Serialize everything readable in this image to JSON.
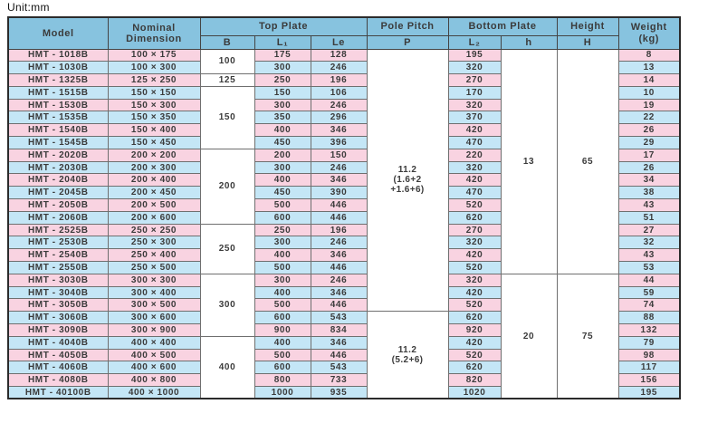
{
  "unit_label": "Unit:mm",
  "colors": {
    "header_blue": "#87c3df",
    "row_pink": "#f9d3e1",
    "row_blue": "#c4e6f6"
  },
  "table": {
    "headers": {
      "model": "Model",
      "nominal_dimension": "Nominal Dimension",
      "top_plate": "Top Plate",
      "pole_pitch": "Pole Pitch",
      "bottom_plate": "Bottom Plate",
      "height": "Height",
      "weight": "Weight",
      "weight_unit": "(kg)",
      "b": "B",
      "l1": "L₁",
      "le": "Le",
      "p": "P",
      "l2": "L₂",
      "h": "h",
      "H_col": "H"
    },
    "b_groups": [
      {
        "value": "100",
        "rows": 2
      },
      {
        "value": "125",
        "rows": 1
      },
      {
        "value": "150",
        "rows": 5
      },
      {
        "value": "200",
        "rows": 6
      },
      {
        "value": "250",
        "rows": 4
      },
      {
        "value": "300",
        "rows": 5
      },
      {
        "value": "400",
        "rows": 5
      }
    ],
    "p_groups": [
      {
        "lines": [
          "11.2",
          "(1.6+2",
          "+1.6+6)"
        ],
        "rows": 21
      },
      {
        "lines": [
          "11.2",
          "(5.2+6)"
        ],
        "rows": 7
      }
    ],
    "hH_groups": [
      {
        "h": "13",
        "H": "65",
        "rows": 18
      },
      {
        "h": "20",
        "H": "75",
        "rows": 10
      }
    ],
    "rows": [
      {
        "model": "HMT - 1018B",
        "dim": "100 × 175",
        "l1": "175",
        "le": "128",
        "l2": "195",
        "kg": "8"
      },
      {
        "model": "HMT - 1030B",
        "dim": "100 × 300",
        "l1": "300",
        "le": "246",
        "l2": "320",
        "kg": "13"
      },
      {
        "model": "HMT - 1325B",
        "dim": "125 × 250",
        "l1": "250",
        "le": "196",
        "l2": "270",
        "kg": "14"
      },
      {
        "model": "HMT - 1515B",
        "dim": "150 × 150",
        "l1": "150",
        "le": "106",
        "l2": "170",
        "kg": "10"
      },
      {
        "model": "HMT - 1530B",
        "dim": "150 × 300",
        "l1": "300",
        "le": "246",
        "l2": "320",
        "kg": "19"
      },
      {
        "model": "HMT - 1535B",
        "dim": "150 × 350",
        "l1": "350",
        "le": "296",
        "l2": "370",
        "kg": "22"
      },
      {
        "model": "HMT - 1540B",
        "dim": "150 × 400",
        "l1": "400",
        "le": "346",
        "l2": "420",
        "kg": "26"
      },
      {
        "model": "HMT - 1545B",
        "dim": "150 × 450",
        "l1": "450",
        "le": "396",
        "l2": "470",
        "kg": "29"
      },
      {
        "model": "HMT - 2020B",
        "dim": "200 × 200",
        "l1": "200",
        "le": "150",
        "l2": "220",
        "kg": "17"
      },
      {
        "model": "HMT - 2030B",
        "dim": "200 × 300",
        "l1": "300",
        "le": "246",
        "l2": "320",
        "kg": "26"
      },
      {
        "model": "HMT - 2040B",
        "dim": "200 × 400",
        "l1": "400",
        "le": "346",
        "l2": "420",
        "kg": "34"
      },
      {
        "model": "HMT - 2045B",
        "dim": "200 × 450",
        "l1": "450",
        "le": "390",
        "l2": "470",
        "kg": "38"
      },
      {
        "model": "HMT - 2050B",
        "dim": "200 × 500",
        "l1": "500",
        "le": "446",
        "l2": "520",
        "kg": "43"
      },
      {
        "model": "HMT - 2060B",
        "dim": "200 × 600",
        "l1": "600",
        "le": "446",
        "l2": "620",
        "kg": "51"
      },
      {
        "model": "HMT - 2525B",
        "dim": "250 × 250",
        "l1": "250",
        "le": "196",
        "l2": "270",
        "kg": "27"
      },
      {
        "model": "HMT - 2530B",
        "dim": "250 × 300",
        "l1": "300",
        "le": "246",
        "l2": "320",
        "kg": "32"
      },
      {
        "model": "HMT - 2540B",
        "dim": "250 × 400",
        "l1": "400",
        "le": "346",
        "l2": "420",
        "kg": "43"
      },
      {
        "model": "HMT - 2550B",
        "dim": "250 × 500",
        "l1": "500",
        "le": "446",
        "l2": "520",
        "kg": "53"
      },
      {
        "model": "HMT - 3030B",
        "dim": "300 × 300",
        "l1": "300",
        "le": "246",
        "l2": "320",
        "kg": "44"
      },
      {
        "model": "HMT - 3040B",
        "dim": "300 × 400",
        "l1": "400",
        "le": "346",
        "l2": "420",
        "kg": "59"
      },
      {
        "model": "HMT - 3050B",
        "dim": "300 × 500",
        "l1": "500",
        "le": "446",
        "l2": "520",
        "kg": "74"
      },
      {
        "model": "HMT - 3060B",
        "dim": "300 × 600",
        "l1": "600",
        "le": "543",
        "l2": "620",
        "kg": "88"
      },
      {
        "model": "HMT - 3090B",
        "dim": "300 × 900",
        "l1": "900",
        "le": "834",
        "l2": "920",
        "kg": "132"
      },
      {
        "model": "HMT - 4040B",
        "dim": "400 × 400",
        "l1": "400",
        "le": "346",
        "l2": "420",
        "kg": "79"
      },
      {
        "model": "HMT - 4050B",
        "dim": "400 × 500",
        "l1": "500",
        "le": "446",
        "l2": "520",
        "kg": "98"
      },
      {
        "model": "HMT - 4060B",
        "dim": "400 × 600",
        "l1": "600",
        "le": "543",
        "l2": "620",
        "kg": "117"
      },
      {
        "model": "HMT - 4080B",
        "dim": "400 × 800",
        "l1": "800",
        "le": "733",
        "l2": "820",
        "kg": "156"
      },
      {
        "model": "HMT - 40100B",
        "dim": "400 × 1000",
        "l1": "1000",
        "le": "935",
        "l2": "1020",
        "kg": "195"
      }
    ]
  }
}
